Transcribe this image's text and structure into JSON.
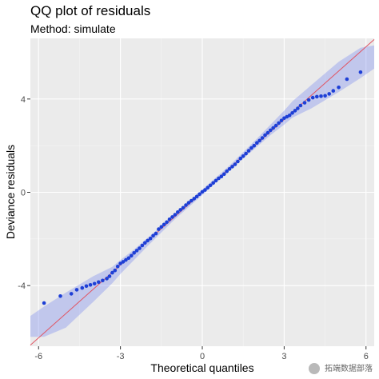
{
  "chart_data": {
    "type": "scatter",
    "title": "QQ plot of residuals",
    "subtitle": "Method: simulate",
    "xlabel": "Theoretical quantiles",
    "ylabel": "Deviance residuals",
    "xlim": [
      -6.3,
      6.3
    ],
    "ylim": [
      -6.6,
      6.6
    ],
    "x_ticks": [
      -6,
      -3,
      0,
      3,
      6
    ],
    "y_ticks": [
      -4,
      0,
      4
    ],
    "x_tick_labels": [
      "-6",
      "-3",
      "0",
      "3",
      "6"
    ],
    "y_tick_labels": [
      "-4",
      "0",
      "4"
    ],
    "grid": true,
    "reference_line": {
      "slope": 1.04,
      "intercept": 0.0,
      "color": "#e05563"
    },
    "band": {
      "x": [
        -6.3,
        -5.8,
        -5.0,
        -4.0,
        -3.3,
        -3.0,
        -2.5,
        -2.0,
        -1.0,
        0.0,
        1.0,
        2.0,
        2.5,
        3.0,
        3.3,
        4.0,
        5.0,
        5.8,
        6.3
      ],
      "lower": [
        -6.2,
        -6.2,
        -5.8,
        -4.7,
        -3.9,
        -3.5,
        -2.9,
        -2.3,
        -1.15,
        -0.12,
        0.95,
        1.95,
        2.45,
        2.9,
        3.2,
        3.6,
        4.3,
        4.9,
        5.3
      ],
      "upper": [
        -5.3,
        -4.9,
        -4.3,
        -3.6,
        -3.2,
        -2.9,
        -2.45,
        -1.95,
        -0.95,
        0.12,
        1.15,
        2.3,
        2.9,
        3.5,
        3.9,
        4.6,
        5.6,
        6.2,
        6.3
      ]
    },
    "points": {
      "color": "#1d3fd6",
      "x": [
        -5.8,
        -5.2,
        -4.8,
        -4.6,
        -4.4,
        -4.25,
        -4.1,
        -3.95,
        -3.8,
        -3.65,
        -3.5,
        -3.4,
        -3.3,
        -3.2,
        -3.1,
        -3.0,
        -2.9,
        -2.8,
        -2.7,
        -2.6,
        -2.5,
        -2.4,
        -2.3,
        -2.2,
        -2.1,
        -2.0,
        -1.9,
        -1.8,
        -1.7,
        -1.6,
        -1.5,
        -1.4,
        -1.3,
        -1.2,
        -1.1,
        -1.0,
        -0.9,
        -0.8,
        -0.7,
        -0.6,
        -0.5,
        -0.4,
        -0.3,
        -0.2,
        -0.1,
        0.0,
        0.1,
        0.2,
        0.3,
        0.4,
        0.5,
        0.6,
        0.7,
        0.8,
        0.9,
        1.0,
        1.1,
        1.2,
        1.3,
        1.4,
        1.5,
        1.6,
        1.7,
        1.8,
        1.9,
        2.0,
        2.1,
        2.2,
        2.3,
        2.4,
        2.5,
        2.6,
        2.7,
        2.8,
        2.9,
        3.0,
        3.1,
        3.2,
        3.3,
        3.4,
        3.5,
        3.6,
        3.75,
        3.9,
        4.05,
        4.2,
        4.35,
        4.5,
        4.65,
        4.8,
        5.0,
        5.3,
        5.8
      ],
      "y": [
        -4.75,
        -4.45,
        -4.35,
        -4.18,
        -4.1,
        -4.02,
        -3.97,
        -3.92,
        -3.85,
        -3.78,
        -3.7,
        -3.6,
        -3.45,
        -3.35,
        -3.18,
        -3.05,
        -2.98,
        -2.9,
        -2.82,
        -2.72,
        -2.6,
        -2.5,
        -2.4,
        -2.28,
        -2.17,
        -2.07,
        -1.98,
        -1.86,
        -1.77,
        -1.58,
        -1.48,
        -1.38,
        -1.28,
        -1.16,
        -1.06,
        -0.96,
        -0.85,
        -0.75,
        -0.66,
        -0.55,
        -0.45,
        -0.36,
        -0.27,
        -0.18,
        -0.08,
        0.02,
        0.1,
        0.2,
        0.3,
        0.4,
        0.5,
        0.6,
        0.68,
        0.78,
        0.9,
        1.0,
        1.1,
        1.2,
        1.32,
        1.45,
        1.55,
        1.66,
        1.78,
        1.9,
        2.0,
        2.12,
        2.22,
        2.33,
        2.45,
        2.55,
        2.66,
        2.76,
        2.86,
        2.97,
        3.08,
        3.18,
        3.24,
        3.3,
        3.4,
        3.5,
        3.6,
        3.72,
        3.84,
        3.96,
        4.06,
        4.1,
        4.12,
        4.14,
        4.22,
        4.35,
        4.5,
        4.85,
        5.15
      ]
    }
  },
  "watermark": {
    "text": "拓端数据部落"
  }
}
